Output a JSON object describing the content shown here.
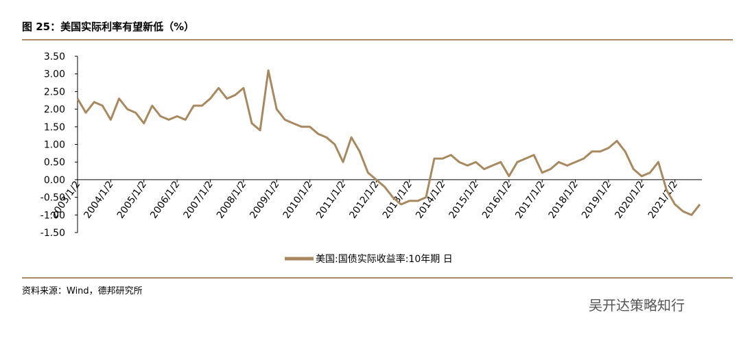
{
  "chart_data": {
    "type": "line",
    "title": "图 25：美国实际利率有望新低（%）",
    "source": "资料来源：Wind，德邦研究所",
    "watermark": "吴开达策略知行",
    "categories": [
      "2003/1/2",
      null,
      null,
      null,
      "2004/1/2",
      null,
      null,
      null,
      "2005/1/2",
      null,
      null,
      null,
      "2006/1/2",
      null,
      null,
      null,
      "2007/1/2",
      null,
      null,
      null,
      "2008/1/2",
      null,
      null,
      null,
      "2009/1/2",
      null,
      null,
      null,
      "2010/1/2",
      null,
      null,
      null,
      "2011/1/2",
      null,
      null,
      null,
      "2012/1/2",
      null,
      null,
      null,
      "2013/1/2",
      null,
      null,
      null,
      "2014/1/2",
      null,
      null,
      null,
      "2015/1/2",
      null,
      null,
      null,
      "2016/1/2",
      null,
      null,
      null,
      "2017/1/2",
      null,
      null,
      null,
      "2018/1/2",
      null,
      null,
      null,
      "2019/1/2",
      null,
      null,
      null,
      "2020/1/2",
      null,
      null,
      null,
      "2021/1/2",
      null,
      null,
      null
    ],
    "series": [
      {
        "name": "美国:国债实际收益率:10年期 日",
        "color": "#a8885e",
        "values": [
          2.3,
          1.9,
          2.2,
          2.1,
          1.7,
          2.3,
          2.0,
          1.9,
          1.6,
          2.1,
          1.8,
          1.7,
          1.8,
          1.7,
          2.1,
          2.1,
          2.3,
          2.6,
          2.3,
          2.4,
          2.6,
          1.6,
          1.4,
          3.1,
          2.0,
          1.7,
          1.6,
          1.5,
          1.5,
          1.3,
          1.2,
          1.0,
          0.5,
          1.2,
          0.8,
          0.2,
          0.0,
          -0.2,
          -0.5,
          -0.7,
          -0.6,
          -0.6,
          -0.5,
          0.6,
          0.6,
          0.7,
          0.5,
          0.4,
          0.5,
          0.3,
          0.4,
          0.5,
          0.1,
          0.5,
          0.6,
          0.7,
          0.2,
          0.3,
          0.5,
          0.4,
          0.5,
          0.6,
          0.8,
          0.8,
          0.9,
          1.1,
          0.8,
          0.3,
          0.1,
          0.2,
          0.5,
          -0.3,
          -0.7,
          -0.9,
          -1.0,
          -0.7
        ]
      }
    ],
    "ylim": [
      -1.5,
      3.5
    ],
    "yticks": [
      {
        "value": -1.5,
        "label": "-1.50"
      },
      {
        "value": -1,
        "label": "-1.00"
      },
      {
        "value": -0.5,
        "label": "-0.50"
      },
      {
        "value": 0,
        "label": "0.00"
      },
      {
        "value": 0.5,
        "label": "0.50"
      },
      {
        "value": 1,
        "label": "1.00"
      },
      {
        "value": 1.5,
        "label": "1.50"
      },
      {
        "value": 2,
        "label": "2.00"
      },
      {
        "value": 2.5,
        "label": "2.50"
      },
      {
        "value": 3,
        "label": "3.00"
      },
      {
        "value": 3.5,
        "label": "3.50"
      }
    ],
    "legend": "bottom"
  }
}
